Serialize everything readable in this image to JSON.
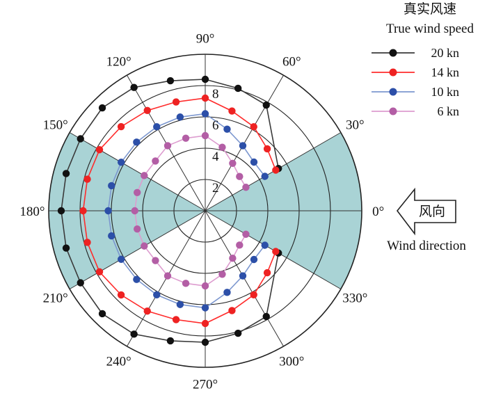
{
  "chart_data": {
    "type": "polar-line",
    "legend_title": [
      "真实风速",
      "True wind speed"
    ],
    "radial_ticks": [
      2,
      4,
      6,
      8
    ],
    "angle_ticks": [
      0,
      30,
      60,
      90,
      120,
      150,
      180,
      210,
      240,
      270,
      300,
      330
    ],
    "angle_labels": [
      "0°",
      "30°",
      "60°",
      "90°",
      "120°",
      "150°",
      "180°",
      "210°",
      "240°",
      "270°",
      "300°",
      "330°"
    ],
    "rlim": [
      0,
      10
    ],
    "shaded_sectors": [
      [
        -30,
        30
      ],
      [
        150,
        210
      ]
    ],
    "shade_color": "#a9d3d5",
    "wind_arrow_text": "风向",
    "wind_direction_label": "Wind direction",
    "series": [
      {
        "name": "20 kn",
        "color": "#3a3a3a",
        "marker": "#111111",
        "angles": [
          30,
          60,
          75,
          90,
          105,
          120,
          135,
          150,
          165,
          180,
          195,
          210,
          225,
          240,
          255,
          270,
          285,
          300,
          330
        ],
        "values": [
          5.4,
          7.8,
          8.1,
          8.4,
          8.6,
          9.1,
          9.3,
          9.2,
          9.2,
          9.2,
          9.2,
          9.2,
          9.3,
          9.1,
          8.6,
          8.4,
          8.1,
          7.8,
          5.4
        ]
      },
      {
        "name": "14 kn",
        "color": "#ff2b2b",
        "marker": "#ee2222",
        "angles": [
          30,
          45,
          60,
          75,
          90,
          105,
          120,
          135,
          150,
          165,
          180,
          195,
          210,
          225,
          240,
          255,
          270,
          285,
          300,
          315,
          330
        ],
        "values": [
          5.2,
          5.6,
          6.2,
          6.6,
          7.2,
          7.2,
          7.4,
          7.6,
          7.8,
          7.8,
          7.8,
          7.8,
          7.8,
          7.6,
          7.4,
          7.2,
          7.2,
          6.6,
          6.2,
          5.6,
          5.2
        ],
        "open_ends": true
      },
      {
        "name": "10 kn",
        "color": "#7c97cf",
        "marker": "#2c4fa8",
        "angles": [
          30,
          45,
          60,
          75,
          90,
          105,
          120,
          135,
          150,
          165,
          180,
          195,
          210,
          225,
          240,
          255,
          270,
          285,
          300,
          315,
          330
        ],
        "values": [
          4.4,
          4.4,
          4.8,
          5.4,
          6.2,
          6.2,
          6.2,
          6.2,
          6.2,
          6.2,
          6.2,
          6.2,
          6.2,
          6.2,
          6.2,
          6.2,
          6.2,
          5.4,
          4.8,
          4.4,
          4.4
        ]
      },
      {
        "name": "6 kn",
        "color": "#dd9ccf",
        "marker": "#b35ea5",
        "angles": [
          30,
          45,
          60,
          75,
          90,
          105,
          120,
          135,
          150,
          165,
          180,
          195,
          210,
          225,
          240,
          255,
          270,
          285,
          300,
          315,
          330
        ],
        "values": [
          3.0,
          3.1,
          3.5,
          4.2,
          4.8,
          4.8,
          4.8,
          4.5,
          4.5,
          4.5,
          4.5,
          4.5,
          4.5,
          4.5,
          4.8,
          4.8,
          4.8,
          4.2,
          3.5,
          3.1,
          3.0
        ]
      }
    ]
  }
}
